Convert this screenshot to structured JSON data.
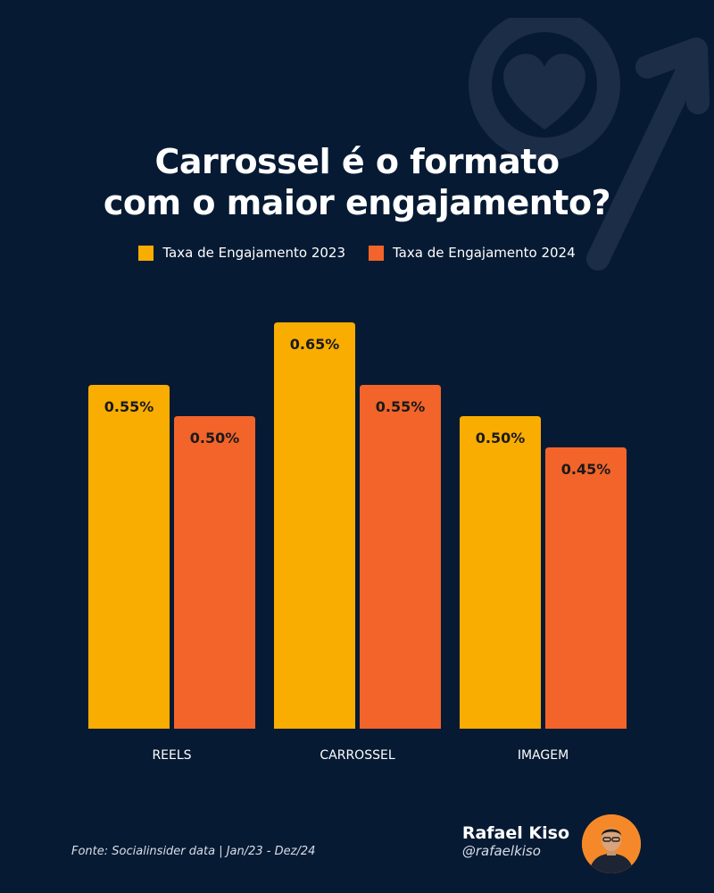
{
  "title": {
    "line1": "Carrossel é o formato",
    "line2": "com o maior engajamento?"
  },
  "colors": {
    "background": "#071a33",
    "series_2023": "#f9ad00",
    "series_2024": "#f2642a",
    "value_label": "#1a1a1a"
  },
  "chart_data": {
    "type": "bar",
    "categories": [
      "REELS",
      "CARROSSEL",
      "IMAGEM"
    ],
    "series": [
      {
        "name": "Taxa de Engajamento 2023",
        "values": [
          0.55,
          0.65,
          0.5
        ],
        "labels": [
          "0.55%",
          "0.65%",
          "0.50%"
        ]
      },
      {
        "name": "Taxa de Engajamento 2024",
        "values": [
          0.5,
          0.55,
          0.45
        ],
        "labels": [
          "0.50%",
          "0.55%",
          "0.45%"
        ]
      }
    ],
    "unit": "%",
    "ylim": [
      0,
      0.7
    ],
    "grid": false,
    "legend": "top-center"
  },
  "footer": {
    "source": "Fonte: Socialinsider data | Jan/23 - Dez/24",
    "author_name": "Rafael Kiso",
    "author_handle": "@rafaelkiso"
  },
  "icons": {
    "watermark": "heart-arrow-icon",
    "avatar": "avatar"
  }
}
